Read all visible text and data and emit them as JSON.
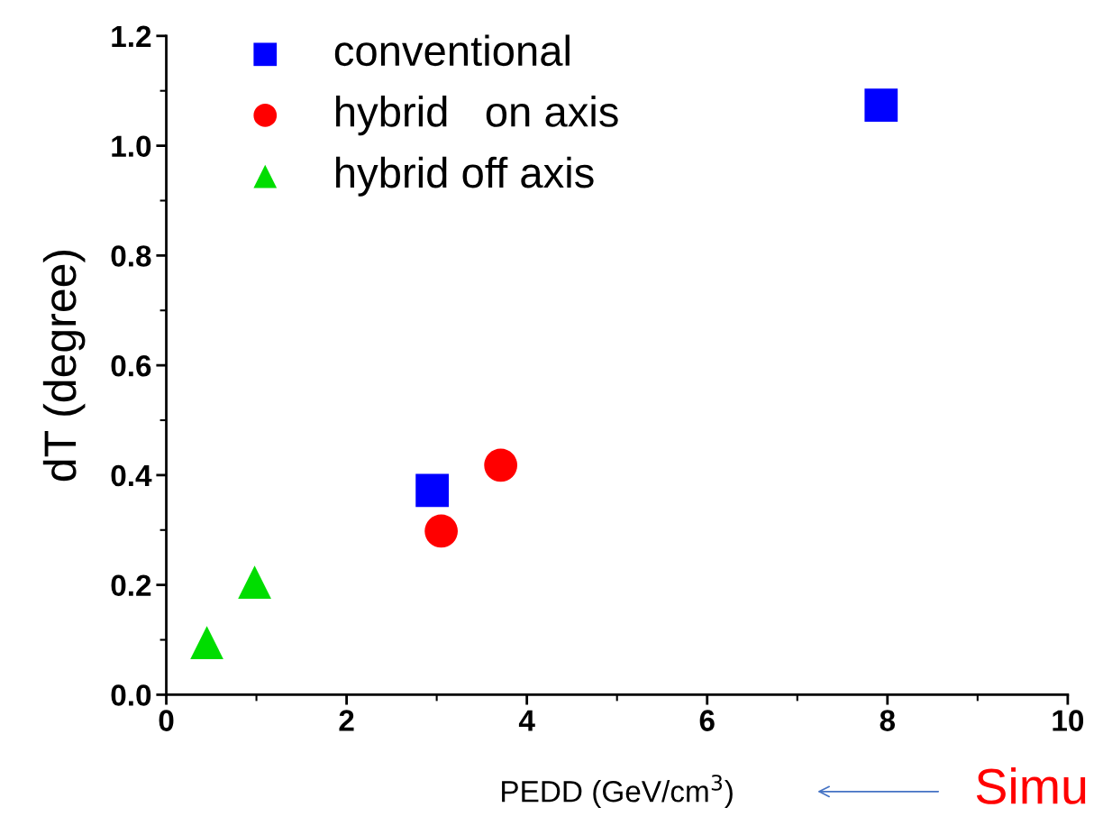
{
  "chart_data": {
    "type": "scatter",
    "xlabel": "PEDD (GeV/cm$^{3}$)",
    "ylabel": "dT (degree)",
    "series": [
      {
        "name": "conventional",
        "color": "#0000ff",
        "marker": "square",
        "x": [
          2.95,
          7.93
        ],
        "values": [
          0.372,
          1.074
        ]
      },
      {
        "name": "hybrid   on axis",
        "color": "#ff0000",
        "marker": "circle",
        "x": [
          3.05,
          3.71
        ],
        "values": [
          0.298,
          0.418
        ]
      },
      {
        "name": "hybrid off axis",
        "color": "#00dd00",
        "marker": "triangle",
        "x": [
          0.45,
          0.98
        ],
        "values": [
          0.095,
          0.205
        ]
      }
    ],
    "xlim": [
      0,
      10
    ],
    "ylim": [
      0,
      1.2
    ],
    "xticks": [
      0,
      2,
      4,
      6,
      8,
      10
    ],
    "yticks": [
      {
        "value": 0,
        "label": "0.0"
      },
      {
        "value": 0.2,
        "label": "0.2"
      },
      {
        "value": 0.4,
        "label": "0.4"
      },
      {
        "value": 0.6,
        "label": "0.6"
      },
      {
        "value": 0.8,
        "label": "0.8"
      },
      {
        "value": 1.0,
        "label": "1.0"
      },
      {
        "value": 1.2,
        "label": "1.2"
      }
    ],
    "grid": false,
    "legend": "top left",
    "annotations": [
      "Simu"
    ]
  }
}
